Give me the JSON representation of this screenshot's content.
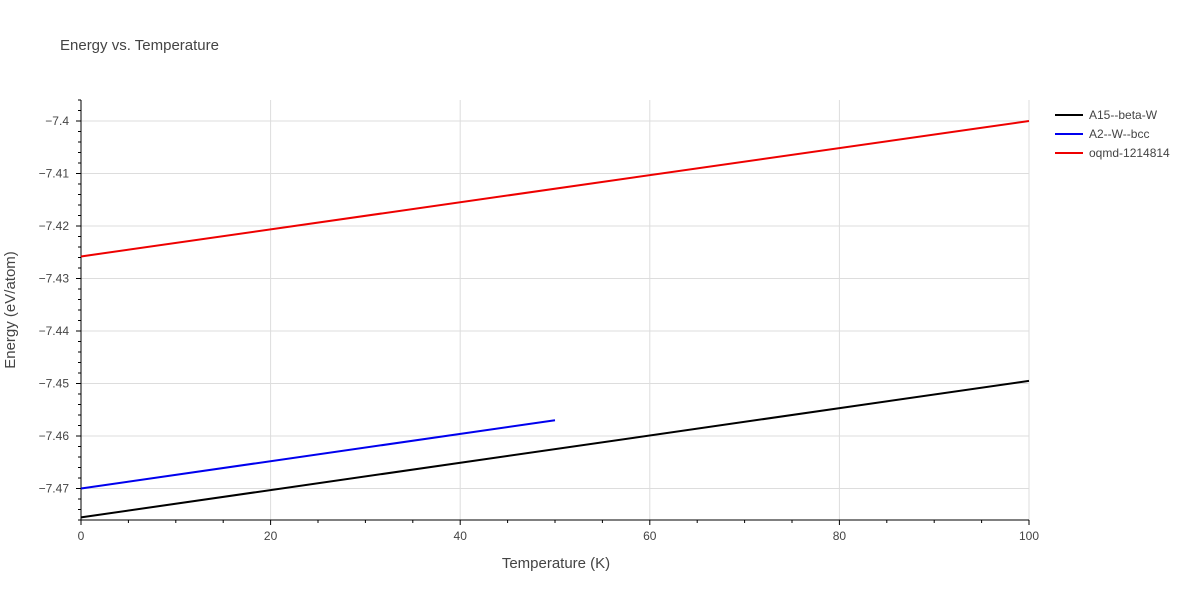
{
  "chart_data": {
    "type": "line",
    "title": "Energy vs. Temperature",
    "xlabel": "Temperature (K)",
    "ylabel": "Energy (eV/atom)",
    "xlim": [
      0,
      100
    ],
    "ylim": [
      -7.476,
      -7.396
    ],
    "x_ticks": [
      0,
      20,
      40,
      60,
      80,
      100
    ],
    "y_ticks": [
      -7.4,
      -7.41,
      -7.42,
      -7.43,
      -7.44,
      -7.45,
      -7.46,
      -7.47
    ],
    "x_tick_labels": [
      "0",
      "20",
      "40",
      "60",
      "80",
      "100"
    ],
    "y_tick_labels": [
      "−7.4",
      "−7.41",
      "−7.42",
      "−7.43",
      "−7.44",
      "−7.45",
      "−7.46",
      "−7.47"
    ],
    "grid": true,
    "legend_position": "top-right",
    "series": [
      {
        "name": "A15--beta-W",
        "color": "#000000",
        "x": [
          0,
          100
        ],
        "y": [
          -7.4755,
          -7.4495
        ]
      },
      {
        "name": "A2--W--bcc",
        "color": "#0000ee",
        "x": [
          0,
          50
        ],
        "y": [
          -7.47,
          -7.457
        ]
      },
      {
        "name": "oqmd-1214814",
        "color": "#ee0000",
        "x": [
          0,
          100
        ],
        "y": [
          -7.4258,
          -7.4
        ]
      }
    ]
  }
}
